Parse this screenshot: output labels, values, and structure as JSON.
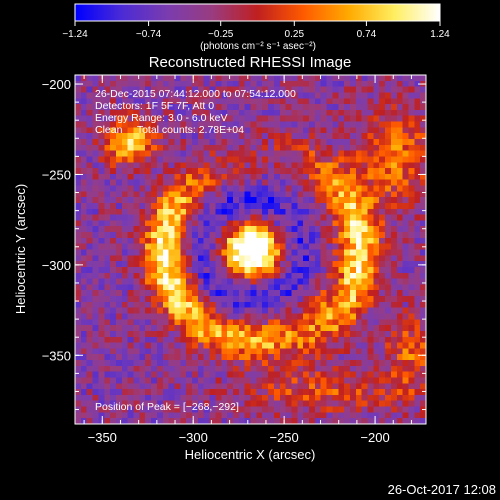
{
  "chart_data": {
    "type": "heatmap",
    "title": "Reconstructed RHESSI Image",
    "xlabel": "Heliocentric X (arcsec)",
    "ylabel": "Heliocentric Y (arcsec)",
    "xlim": [
      -365,
      -172
    ],
    "ylim": [
      -388,
      -195
    ],
    "xticks": [
      {
        "value": -350,
        "label": "−350"
      },
      {
        "value": -300,
        "label": "−300"
      },
      {
        "value": -250,
        "label": "−250"
      },
      {
        "value": -200,
        "label": "−200"
      }
    ],
    "yticks": [
      {
        "value": -200,
        "label": "−200"
      },
      {
        "value": -250,
        "label": "−250"
      },
      {
        "value": -300,
        "label": "−300"
      },
      {
        "value": -350,
        "label": "−350"
      }
    ],
    "colorbar": {
      "min": -1.24,
      "max": 1.24,
      "tick_values": [
        -1.24,
        -0.74,
        -0.25,
        0.25,
        0.74,
        1.24
      ],
      "tick_labels": [
        "−1.24",
        "−0.74",
        "−0.25",
        "0.25",
        "0.74",
        "1.24"
      ],
      "units": "(photons cm⁻² s⁻¹ asec⁻²)",
      "colors": [
        "#0000ff",
        "#4b2bd6",
        "#7a3cb0",
        "#9a3c80",
        "#c02020",
        "#ff5a00",
        "#ffaa00",
        "#ffee60",
        "#ffffff"
      ]
    },
    "info_lines": [
      "26-Dec-2015 07:44:12.000 to 07:54:12.000",
      "Detectors: 1F 5F 7F, Att 0",
      "Energy Range: 3.0 - 6.0 keV",
      "Clean     Total counts: 2.78E+04"
    ],
    "peak_label": "Position of Peak = [−268,−292]",
    "peak": {
      "x": -268,
      "y": -292,
      "value": 1.24
    },
    "features": [
      {
        "name": "central source",
        "x": -268,
        "y": -292,
        "peak_value": 1.24
      },
      {
        "name": "left arc",
        "x": -300,
        "y": -290,
        "peak_value": 0.9
      },
      {
        "name": "right arc",
        "x": -210,
        "y": -290,
        "peak_value": 0.85
      },
      {
        "name": "upper-left blob",
        "x": -335,
        "y": -235,
        "peak_value": 0.75
      },
      {
        "name": "lower arc",
        "x": -268,
        "y": -340,
        "peak_value": 0.6
      },
      {
        "name": "dark ring",
        "x": -268,
        "y": -290,
        "radius": 30,
        "value": -0.9
      }
    ]
  },
  "footer": {
    "timestamp": "26-Oct-2017 12:08"
  }
}
